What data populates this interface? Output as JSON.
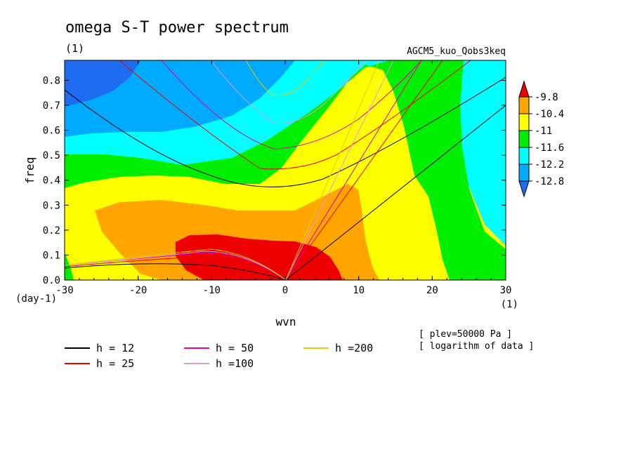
{
  "chart_data": {
    "type": "heatmap",
    "title": "omega S-T power spectrum",
    "subtitle": "(1)",
    "case_label": "AGCM5_kuo_Qobs3keq",
    "xlabel": "wvn",
    "x_unit": "(1)",
    "ylabel": "freq",
    "y_unit": "(day-1)",
    "xlim": [
      -30,
      30
    ],
    "ylim": [
      0,
      0.88
    ],
    "x_ticks": [
      "-30",
      "-20",
      "-10",
      "0",
      "10",
      "20",
      "30"
    ],
    "y_ticks": [
      "0.0",
      "0.1",
      "0.2",
      "0.3",
      "0.4",
      "0.5",
      "0.6",
      "0.7",
      "0.8"
    ],
    "notes": [
      "[ plev=50000 Pa ]",
      "[ logarithm of data ]"
    ],
    "colorbar": {
      "labels": [
        "-9.8",
        "-10.4",
        "-11",
        "-11.6",
        "-12.2",
        "-12.8"
      ],
      "colors": [
        "#ee0000",
        "#ffa500",
        "#ffff00",
        "#00ee00",
        "#00ffff",
        "#00aaff",
        "#1e6cf0"
      ]
    },
    "dispersion_legend": [
      {
        "label": "h = 12",
        "color": "#000000"
      },
      {
        "label": "h = 25",
        "color": "#ee0000"
      },
      {
        "label": "h = 50",
        "color": "#dd00aa"
      },
      {
        "label": "h =100",
        "color": "#dd99dd"
      },
      {
        "label": "h =200",
        "color": "#ddcc00"
      }
    ]
  }
}
